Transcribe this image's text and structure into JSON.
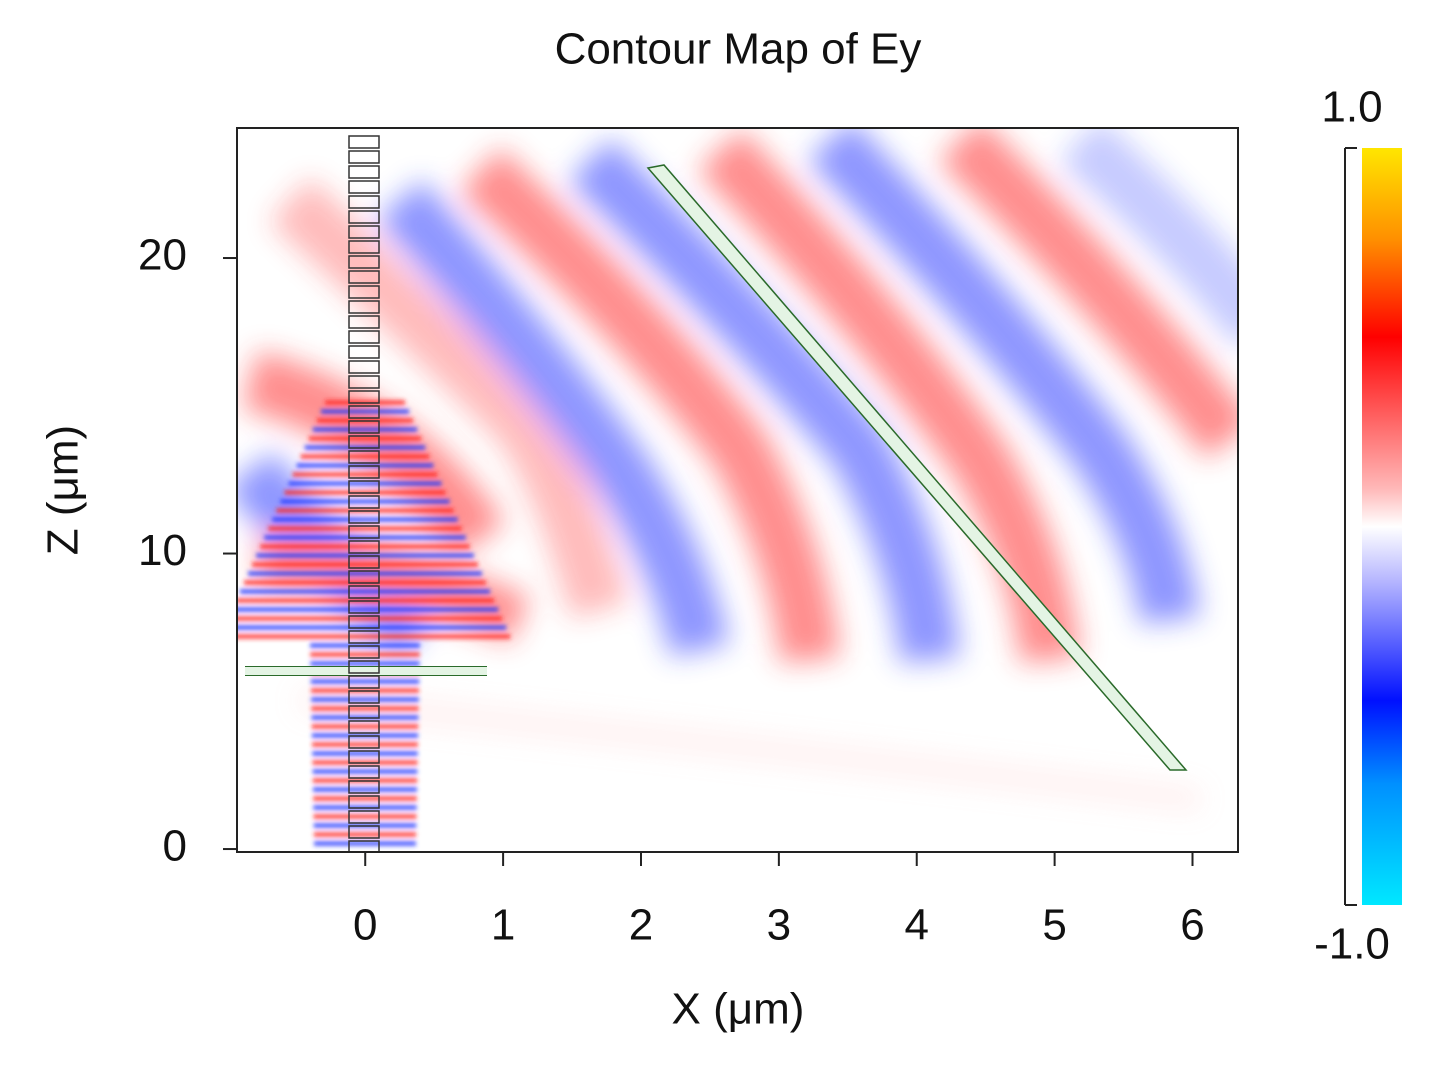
{
  "chart_data": {
    "type": "contour",
    "title": "Contour Map of Ey",
    "x_label": "X (μm)",
    "y_label": "Z (μm)",
    "xlim": [
      -0.93,
      6.33
    ],
    "xticks": [
      0,
      1,
      2,
      3,
      4,
      5,
      6
    ],
    "ylim": [
      -0.1,
      24.4
    ],
    "yticks": [
      0,
      10,
      20
    ],
    "clim": [
      -1.0,
      1.0
    ],
    "cticks": [
      {
        "value": -1.0,
        "label": "-1.0"
      },
      {
        "value": 1.0,
        "label": "1.0"
      }
    ]
  }
}
